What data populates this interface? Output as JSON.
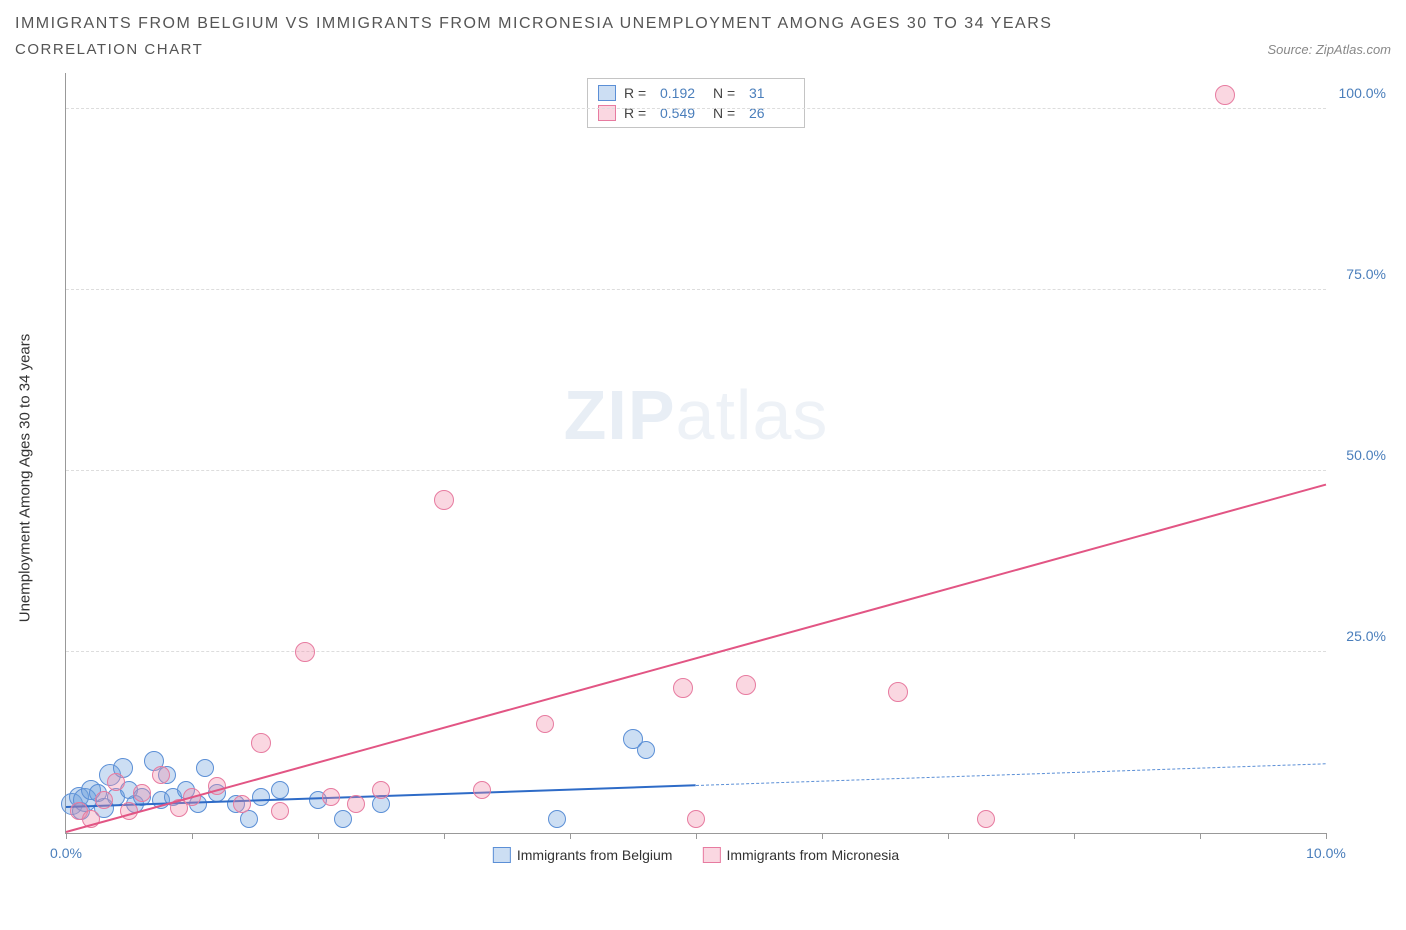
{
  "title_line1": "IMMIGRANTS FROM BELGIUM VS IMMIGRANTS FROM MICRONESIA UNEMPLOYMENT AMONG AGES 30 TO 34 YEARS",
  "title_line2": "CORRELATION CHART",
  "source_label": "Source: ZipAtlas.com",
  "ylabel": "Unemployment Among Ages 30 to 34 years",
  "watermark_bold": "ZIP",
  "watermark_thin": "atlas",
  "chart": {
    "type": "scatter",
    "xlim": [
      0,
      10
    ],
    "ylim": [
      0,
      105
    ],
    "xtick_positions": [
      0,
      1,
      2,
      3,
      4,
      5,
      6,
      7,
      8,
      9,
      10
    ],
    "xtick_labels_shown": {
      "0": "0.0%",
      "10": "10.0%"
    },
    "ytick_positions": [
      25,
      50,
      75,
      100
    ],
    "ytick_labels": [
      "25.0%",
      "50.0%",
      "75.0%",
      "100.0%"
    ],
    "gridline_color": "#dddddd",
    "axis_color": "#999999",
    "tick_label_color": "#4a7ebb",
    "background_color": "#ffffff",
    "axis_label_color": "#333333",
    "axis_label_fontsize": 15,
    "tick_fontsize": 14
  },
  "series": [
    {
      "name": "Immigrants from Belgium",
      "color_fill": "rgba(110,160,220,0.35)",
      "color_stroke": "#5b8fd6",
      "marker_radius": 8,
      "R": "0.192",
      "N": "31",
      "trend": {
        "x1": 0,
        "y1": 3.5,
        "x2": 5,
        "y2": 6.5,
        "color": "#2e6bc7",
        "width": 2,
        "style": "solid"
      },
      "trend_ext": {
        "x1": 5,
        "y1": 6.5,
        "x2": 10,
        "y2": 9.5,
        "color": "#5b8fd6",
        "width": 1.5,
        "style": "dashed"
      },
      "points": [
        {
          "x": 0.05,
          "y": 4.0,
          "r": 10
        },
        {
          "x": 0.1,
          "y": 5.0,
          "r": 9
        },
        {
          "x": 0.12,
          "y": 3.0,
          "r": 8
        },
        {
          "x": 0.15,
          "y": 4.5,
          "r": 11
        },
        {
          "x": 0.2,
          "y": 6.0,
          "r": 9
        },
        {
          "x": 0.25,
          "y": 5.5,
          "r": 8
        },
        {
          "x": 0.3,
          "y": 3.5,
          "r": 9
        },
        {
          "x": 0.35,
          "y": 8.0,
          "r": 10
        },
        {
          "x": 0.4,
          "y": 5.0,
          "r": 8
        },
        {
          "x": 0.45,
          "y": 9.0,
          "r": 9
        },
        {
          "x": 0.5,
          "y": 6.0,
          "r": 8
        },
        {
          "x": 0.55,
          "y": 4.0,
          "r": 8
        },
        {
          "x": 0.6,
          "y": 5.0,
          "r": 8
        },
        {
          "x": 0.7,
          "y": 10.0,
          "r": 9
        },
        {
          "x": 0.75,
          "y": 4.5,
          "r": 8
        },
        {
          "x": 0.8,
          "y": 8.0,
          "r": 8
        },
        {
          "x": 0.85,
          "y": 5.0,
          "r": 8
        },
        {
          "x": 0.95,
          "y": 6.0,
          "r": 8
        },
        {
          "x": 1.05,
          "y": 4.0,
          "r": 8
        },
        {
          "x": 1.1,
          "y": 9.0,
          "r": 8
        },
        {
          "x": 1.2,
          "y": 5.5,
          "r": 8
        },
        {
          "x": 1.35,
          "y": 4.0,
          "r": 8
        },
        {
          "x": 1.45,
          "y": 2.0,
          "r": 8
        },
        {
          "x": 1.55,
          "y": 5.0,
          "r": 8
        },
        {
          "x": 1.7,
          "y": 6.0,
          "r": 8
        },
        {
          "x": 2.0,
          "y": 4.5,
          "r": 8
        },
        {
          "x": 2.2,
          "y": 2.0,
          "r": 8
        },
        {
          "x": 2.5,
          "y": 4.0,
          "r": 8
        },
        {
          "x": 3.9,
          "y": 2.0,
          "r": 8
        },
        {
          "x": 4.5,
          "y": 13.0,
          "r": 9
        },
        {
          "x": 4.6,
          "y": 11.5,
          "r": 8
        }
      ]
    },
    {
      "name": "Immigrants from Micronesia",
      "color_fill": "rgba(240,140,170,0.35)",
      "color_stroke": "#e77ba0",
      "marker_radius": 8,
      "R": "0.549",
      "N": "26",
      "trend": {
        "x1": 0,
        "y1": 0.0,
        "x2": 10,
        "y2": 48.0,
        "color": "#e25584",
        "width": 2,
        "style": "solid"
      },
      "points": [
        {
          "x": 0.1,
          "y": 3.0,
          "r": 8
        },
        {
          "x": 0.2,
          "y": 2.0,
          "r": 8
        },
        {
          "x": 0.3,
          "y": 4.5,
          "r": 8
        },
        {
          "x": 0.4,
          "y": 7.0,
          "r": 8
        },
        {
          "x": 0.5,
          "y": 3.0,
          "r": 8
        },
        {
          "x": 0.6,
          "y": 5.5,
          "r": 8
        },
        {
          "x": 0.75,
          "y": 8.0,
          "r": 8
        },
        {
          "x": 0.9,
          "y": 3.5,
          "r": 8
        },
        {
          "x": 1.0,
          "y": 5.0,
          "r": 8
        },
        {
          "x": 1.2,
          "y": 6.5,
          "r": 8
        },
        {
          "x": 1.4,
          "y": 4.0,
          "r": 8
        },
        {
          "x": 1.55,
          "y": 12.5,
          "r": 9
        },
        {
          "x": 1.7,
          "y": 3.0,
          "r": 8
        },
        {
          "x": 1.9,
          "y": 25.0,
          "r": 9
        },
        {
          "x": 2.1,
          "y": 5.0,
          "r": 8
        },
        {
          "x": 2.3,
          "y": 4.0,
          "r": 8
        },
        {
          "x": 2.5,
          "y": 6.0,
          "r": 8
        },
        {
          "x": 3.0,
          "y": 46.0,
          "r": 9
        },
        {
          "x": 3.3,
          "y": 6.0,
          "r": 8
        },
        {
          "x": 3.8,
          "y": 15.0,
          "r": 8
        },
        {
          "x": 4.9,
          "y": 20.0,
          "r": 9
        },
        {
          "x": 5.0,
          "y": 2.0,
          "r": 8
        },
        {
          "x": 5.4,
          "y": 20.5,
          "r": 9
        },
        {
          "x": 6.6,
          "y": 19.5,
          "r": 9
        },
        {
          "x": 7.3,
          "y": 2.0,
          "r": 8
        },
        {
          "x": 9.2,
          "y": 102.0,
          "r": 9
        }
      ]
    }
  ],
  "legend_top": {
    "r_label": "R =",
    "n_label": "N ="
  }
}
